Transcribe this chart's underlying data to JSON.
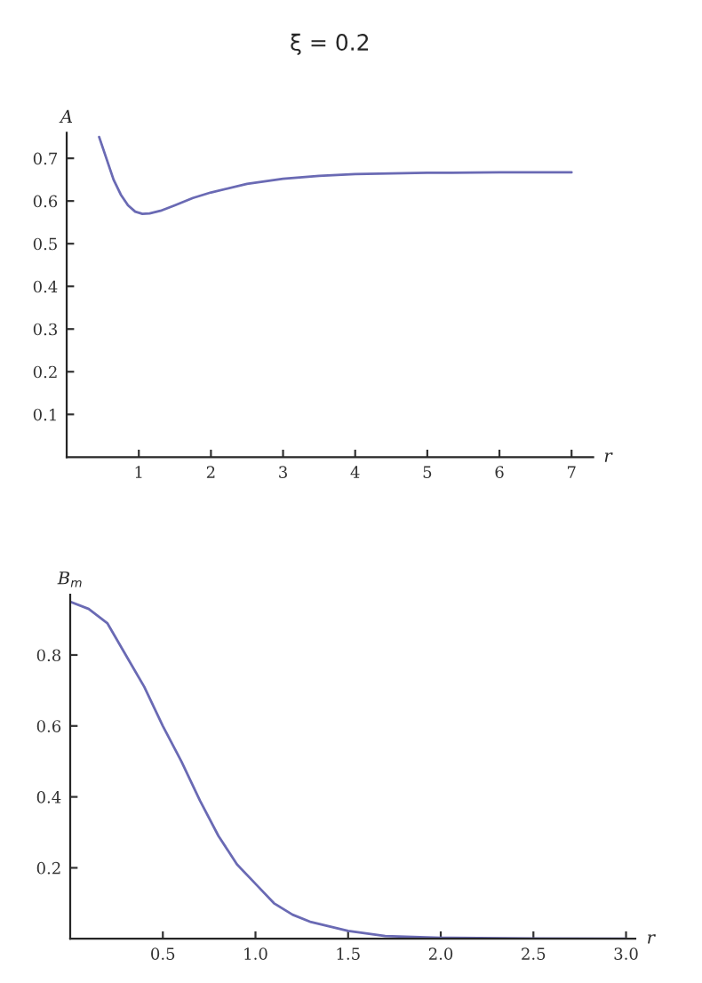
{
  "chart_data": [
    {
      "type": "line",
      "title": "ξ = 0.2",
      "xlabel": "r",
      "ylabel": "A",
      "x": [
        0.45,
        0.55,
        0.65,
        0.75,
        0.85,
        0.95,
        1.05,
        1.15,
        1.3,
        1.5,
        1.75,
        2.0,
        2.5,
        3.0,
        3.5,
        4.0,
        5.0,
        6.0,
        7.0
      ],
      "series": [
        {
          "color": "#6a6ab4",
          "values": [
            0.75,
            0.7,
            0.65,
            0.615,
            0.59,
            0.575,
            0.57,
            0.571,
            0.577,
            0.59,
            0.607,
            0.62,
            0.64,
            0.652,
            0.659,
            0.663,
            0.666,
            0.667,
            0.667
          ]
        }
      ],
      "xlim": [
        0,
        7.3
      ],
      "ylim": [
        0,
        0.76
      ],
      "xticks": [
        1,
        2,
        3,
        4,
        5,
        6,
        7
      ],
      "yticks": [
        0.1,
        0.2,
        0.3,
        0.4,
        0.5,
        0.6,
        0.7
      ],
      "grid": false
    },
    {
      "type": "line",
      "xlabel": "r",
      "ylabel": "B$_{m}$",
      "x": [
        0,
        0.1,
        0.2,
        0.3,
        0.4,
        0.5,
        0.6,
        0.7,
        0.8,
        0.9,
        1.0,
        1.1,
        1.2,
        1.3,
        1.5,
        1.7,
        2.0,
        2.5,
        3.0
      ],
      "series": [
        {
          "color": "#6a6ab4",
          "values": [
            0.95,
            0.93,
            0.89,
            0.8,
            0.71,
            0.6,
            0.5,
            0.39,
            0.29,
            0.21,
            0.155,
            0.1,
            0.068,
            0.047,
            0.022,
            0.008,
            0.003,
            0.001,
            0
          ]
        }
      ],
      "xlim": [
        0,
        3.05
      ],
      "ylim": [
        0,
        0.97
      ],
      "xticks": [
        0.5,
        {
          "value": 1,
          "label": "1.0"
        },
        1.5,
        {
          "value": 2,
          "label": "2.0"
        },
        2.5,
        {
          "value": 3,
          "label": "3.0"
        }
      ],
      "yticks": [
        0.2,
        0.4,
        0.6,
        0.8
      ],
      "grid": false
    }
  ]
}
